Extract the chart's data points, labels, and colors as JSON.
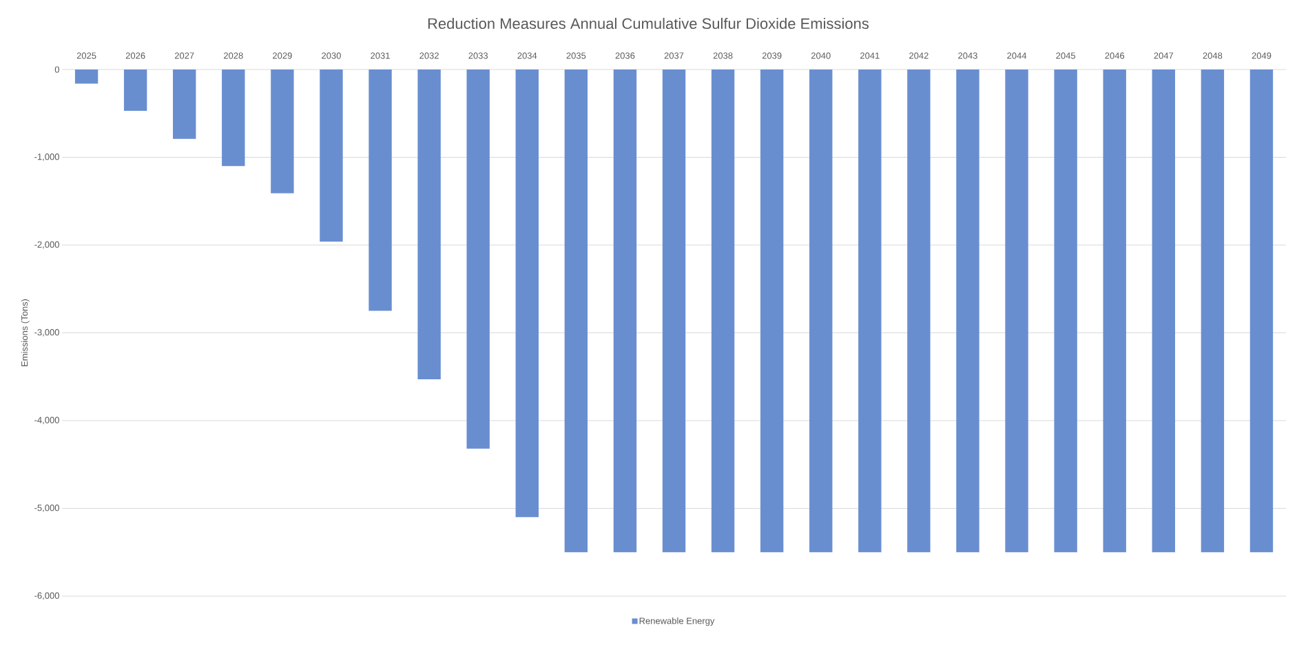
{
  "chart_data": {
    "type": "bar",
    "title": "Reduction Measures Annual Cumulative Sulfur Dioxide Emissions",
    "ylabel": "Emissions (Tons)",
    "categories": [
      "2025",
      "2026",
      "2027",
      "2028",
      "2029",
      "2030",
      "2031",
      "2032",
      "2033",
      "2034",
      "2035",
      "2036",
      "2037",
      "2038",
      "2039",
      "2040",
      "2041",
      "2042",
      "2043",
      "2044",
      "2045",
      "2046",
      "2047",
      "2048",
      "2049"
    ],
    "series": [
      {
        "name": "Renewable Energy",
        "color": "#698ed0",
        "values": [
          -160,
          -470,
          -790,
          -1100,
          -1410,
          -1960,
          -2750,
          -3530,
          -4320,
          -5100,
          -5500,
          -5500,
          -5500,
          -5500,
          -5500,
          -5500,
          -5500,
          -5500,
          -5500,
          -5500,
          -5500,
          -5500,
          -5500,
          -5500,
          -5500
        ]
      }
    ],
    "ylim": [
      -6000,
      0
    ],
    "yticks": [
      {
        "value": -6000,
        "label": "-6,000"
      },
      {
        "value": -5000,
        "label": "-5,000"
      },
      {
        "value": -4000,
        "label": "-4,000"
      },
      {
        "value": -3000,
        "label": "-3,000"
      },
      {
        "value": -2000,
        "label": "-2,000"
      },
      {
        "value": -1000,
        "label": "-1,000"
      },
      0
    ],
    "grid": "y",
    "legend": "bottom"
  }
}
